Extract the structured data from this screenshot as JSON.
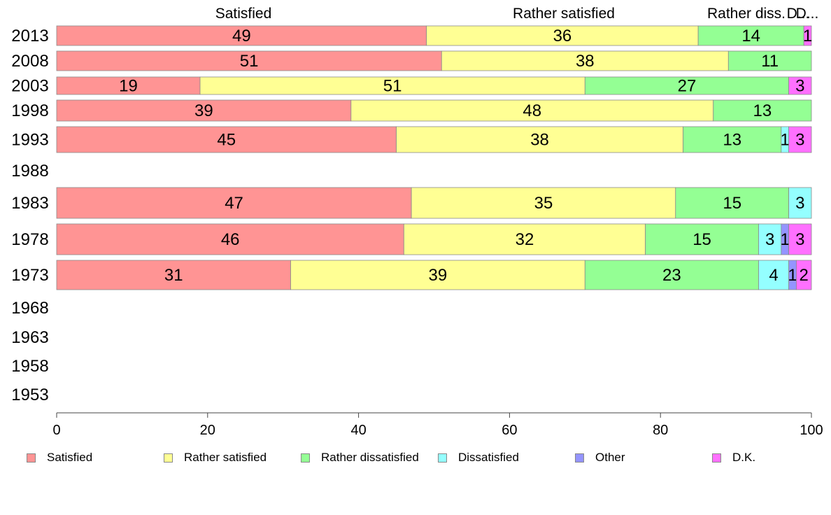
{
  "chart_data": {
    "type": "bar",
    "orientation": "horizontal",
    "stacked": true,
    "categories": [
      "2013",
      "2008",
      "2003",
      "1998",
      "1993",
      "1988",
      "1983",
      "1978",
      "1973",
      "1968",
      "1963",
      "1958",
      "1953"
    ],
    "series": [
      {
        "name": "Satisfied",
        "color": "#ff9494",
        "values": [
          49,
          51,
          19,
          39,
          45,
          null,
          47,
          46,
          31,
          null,
          null,
          null,
          null
        ]
      },
      {
        "name": "Rather satisfied",
        "color": "#ffff94",
        "values": [
          36,
          38,
          51,
          48,
          38,
          null,
          35,
          32,
          39,
          null,
          null,
          null,
          null
        ]
      },
      {
        "name": "Rather dissatisfied",
        "color": "#94ff94",
        "values": [
          14,
          11,
          27,
          13,
          13,
          null,
          15,
          15,
          23,
          null,
          null,
          null,
          null
        ]
      },
      {
        "name": "Dissatisfied",
        "color": "#94ffff",
        "values": [
          0,
          0,
          0,
          0,
          1,
          null,
          3,
          3,
          4,
          null,
          null,
          null,
          null
        ]
      },
      {
        "name": "Other",
        "color": "#9494ff",
        "values": [
          0,
          0,
          0,
          0,
          0,
          null,
          0,
          1,
          1,
          null,
          null,
          null,
          null
        ]
      },
      {
        "name": "D.K.",
        "color": "#ff70ff",
        "values": [
          1,
          0,
          3,
          0,
          3,
          null,
          0,
          3,
          2,
          null,
          null,
          null,
          null
        ]
      }
    ],
    "column_headers": [
      "Satisfied",
      "Rather satisfied",
      "Rather diss.",
      "D...",
      "D..."
    ],
    "xlim": [
      0,
      100
    ],
    "xticks": [
      "0",
      "20",
      "40",
      "60",
      "80",
      "100"
    ],
    "legend_position": "bottom",
    "grid": false
  }
}
